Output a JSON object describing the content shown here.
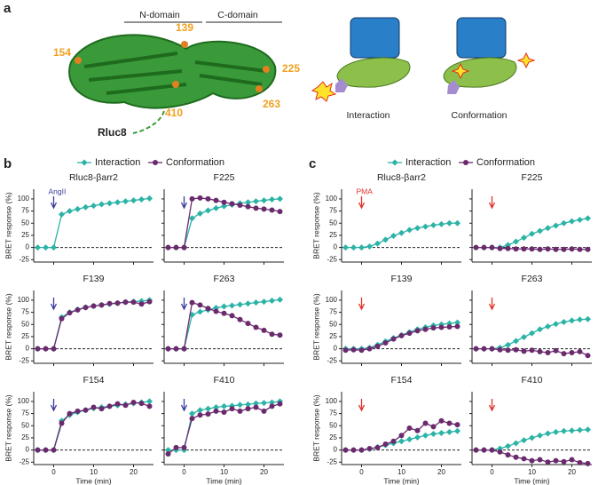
{
  "panel_labels": [
    "a",
    "b",
    "c"
  ],
  "diagram": {
    "n_domain": "N-domain",
    "c_domain": "C-domain",
    "sites": [
      "139",
      "154",
      "225",
      "263",
      "410"
    ],
    "rluc": "Rluc8",
    "captions": [
      "Interaction",
      "Conformation"
    ]
  },
  "chart_data": [
    {
      "type": "line",
      "title": "Rluc8-βarr2",
      "annotation": "AngII",
      "y_label": "BRET response (%)",
      "x": [
        -4,
        -2,
        0,
        2,
        4,
        6,
        8,
        10,
        12,
        14,
        16,
        18,
        20,
        22,
        24
      ],
      "xlim": [
        -5,
        25
      ],
      "ylim": [
        -30,
        120
      ],
      "xticks": [
        0,
        10,
        20
      ],
      "yticks": [
        -25,
        0,
        25,
        50,
        75,
        100
      ],
      "arrow_x": 0,
      "arrow_color": "#3b3b9e",
      "zero_line": true,
      "series": [
        {
          "name": "Interaction",
          "color": "#2ab3a6",
          "marker": "diamond",
          "values": [
            0,
            0,
            0,
            68,
            75,
            79,
            83,
            86,
            89,
            91,
            93,
            95,
            97,
            99,
            101
          ]
        },
        {
          "name": "Conformation",
          "color": "#6b2a6e",
          "marker": "circle",
          "values": [
            null,
            null,
            null,
            null,
            null,
            null,
            null,
            null,
            null,
            null,
            null,
            null,
            null,
            null,
            null
          ]
        }
      ]
    },
    {
      "type": "line",
      "title": "F225",
      "x": [
        -4,
        -2,
        0,
        2,
        4,
        6,
        8,
        10,
        12,
        14,
        16,
        18,
        20,
        22,
        24
      ],
      "xlim": [
        -5,
        25
      ],
      "ylim": [
        -30,
        120
      ],
      "xticks": [
        0,
        10,
        20
      ],
      "yticks": [
        -25,
        0,
        25,
        50,
        75,
        100
      ],
      "arrow_x": 0,
      "arrow_color": "#3b3b9e",
      "zero_line": true,
      "series": [
        {
          "color": "#2ab3a6",
          "marker": "diamond",
          "values": [
            0,
            0,
            0,
            60,
            70,
            76,
            81,
            85,
            88,
            91,
            93,
            95,
            97,
            99,
            100
          ]
        },
        {
          "color": "#6b2a6e",
          "marker": "circle",
          "values": [
            0,
            0,
            0,
            100,
            102,
            100,
            97,
            93,
            90,
            87,
            84,
            81,
            79,
            77,
            74
          ]
        }
      ]
    },
    {
      "type": "line",
      "title": "F139",
      "y_label": "BRET response (%)",
      "x": [
        -4,
        -2,
        0,
        2,
        4,
        6,
        8,
        10,
        12,
        14,
        16,
        18,
        20,
        22,
        24
      ],
      "xlim": [
        -5,
        25
      ],
      "ylim": [
        -30,
        120
      ],
      "xticks": [
        0,
        10,
        20
      ],
      "yticks": [
        -25,
        0,
        25,
        50,
        75,
        100
      ],
      "arrow_x": 0,
      "arrow_color": "#3b3b9e",
      "zero_line": true,
      "series": [
        {
          "color": "#2ab3a6",
          "marker": "diamond",
          "values": [
            0,
            0,
            0,
            65,
            75,
            81,
            85,
            88,
            90,
            92,
            94,
            96,
            97,
            98,
            100
          ]
        },
        {
          "color": "#6b2a6e",
          "marker": "circle",
          "values": [
            0,
            0,
            0,
            62,
            74,
            80,
            85,
            88,
            90,
            93,
            94,
            96,
            96,
            92,
            97
          ]
        }
      ]
    },
    {
      "type": "line",
      "title": "F263",
      "x": [
        -4,
        -2,
        0,
        2,
        4,
        6,
        8,
        10,
        12,
        14,
        16,
        18,
        20,
        22,
        24
      ],
      "xlim": [
        -5,
        25
      ],
      "ylim": [
        -30,
        120
      ],
      "xticks": [
        0,
        10,
        20
      ],
      "yticks": [
        -25,
        0,
        25,
        50,
        75,
        100
      ],
      "arrow_x": 0,
      "arrow_color": "#3b3b9e",
      "zero_line": true,
      "series": [
        {
          "color": "#2ab3a6",
          "marker": "diamond",
          "values": [
            0,
            0,
            0,
            70,
            76,
            80,
            84,
            87,
            89,
            91,
            93,
            95,
            97,
            99,
            101
          ]
        },
        {
          "color": "#6b2a6e",
          "marker": "circle",
          "values": [
            0,
            0,
            0,
            95,
            90,
            83,
            77,
            73,
            68,
            60,
            52,
            44,
            38,
            30,
            28
          ]
        }
      ]
    },
    {
      "type": "line",
      "title": "F154",
      "y_label": "BRET response (%)",
      "x_label": "Time (min)",
      "x": [
        -4,
        -2,
        0,
        2,
        4,
        6,
        8,
        10,
        12,
        14,
        16,
        18,
        20,
        22,
        24
      ],
      "xlim": [
        -5,
        25
      ],
      "ylim": [
        -30,
        120
      ],
      "xticks": [
        0,
        10,
        20
      ],
      "yticks": [
        -25,
        0,
        25,
        50,
        75,
        100
      ],
      "arrow_x": 0,
      "arrow_color": "#3b3b9e",
      "zero_line": true,
      "series": [
        {
          "color": "#2ab3a6",
          "marker": "diamond",
          "values": [
            0,
            0,
            0,
            60,
            72,
            78,
            82,
            86,
            88,
            90,
            92,
            94,
            96,
            98,
            100
          ]
        },
        {
          "color": "#6b2a6e",
          "marker": "circle",
          "values": [
            0,
            0,
            0,
            55,
            75,
            80,
            82,
            88,
            85,
            90,
            95,
            92,
            98,
            96,
            90
          ]
        }
      ]
    },
    {
      "type": "line",
      "title": "F410",
      "x_label": "Time (min)",
      "x": [
        -4,
        -2,
        0,
        2,
        4,
        6,
        8,
        10,
        12,
        14,
        16,
        18,
        20,
        22,
        24
      ],
      "xlim": [
        -5,
        25
      ],
      "ylim": [
        -30,
        120
      ],
      "xticks": [
        0,
        10,
        20
      ],
      "yticks": [
        -25,
        0,
        25,
        50,
        75,
        100
      ],
      "arrow_x": 0,
      "arrow_color": "#3b3b9e",
      "zero_line": true,
      "series": [
        {
          "color": "#2ab3a6",
          "marker": "diamond",
          "values": [
            0,
            0,
            0,
            75,
            82,
            85,
            88,
            90,
            91,
            93,
            94,
            96,
            97,
            98,
            100
          ]
        },
        {
          "color": "#6b2a6e",
          "marker": "circle",
          "values": [
            -8,
            5,
            5,
            65,
            72,
            74,
            80,
            78,
            85,
            80,
            85,
            88,
            80,
            90,
            95
          ]
        }
      ]
    },
    {
      "type": "line",
      "title": "Rluc8-βarr2",
      "annotation": "PMA",
      "y_label": "BRET response (%)",
      "x": [
        -4,
        -2,
        0,
        2,
        4,
        6,
        8,
        10,
        12,
        14,
        16,
        18,
        20,
        22,
        24
      ],
      "xlim": [
        -5,
        25
      ],
      "ylim": [
        -30,
        120
      ],
      "xticks": [
        0,
        10,
        20
      ],
      "yticks": [
        -25,
        0,
        25,
        50,
        75,
        100
      ],
      "arrow_x": 0,
      "arrow_color": "#e0302a",
      "zero_line": true,
      "series": [
        {
          "name": "Interaction",
          "color": "#2ab3a6",
          "marker": "diamond",
          "values": [
            0,
            0,
            0,
            2,
            8,
            16,
            24,
            30,
            36,
            40,
            43,
            46,
            48,
            50,
            50
          ]
        },
        {
          "name": "Conformation",
          "color": "#6b2a6e",
          "marker": "circle",
          "values": [
            null,
            null,
            null,
            null,
            null,
            null,
            null,
            null,
            null,
            null,
            null,
            null,
            null,
            null,
            null
          ]
        }
      ]
    },
    {
      "type": "line",
      "title": "F225",
      "x": [
        -4,
        -2,
        0,
        2,
        4,
        6,
        8,
        10,
        12,
        14,
        16,
        18,
        20,
        22,
        24
      ],
      "xlim": [
        -5,
        25
      ],
      "ylim": [
        -30,
        120
      ],
      "xticks": [
        0,
        10,
        20
      ],
      "yticks": [
        -25,
        0,
        25,
        50,
        75,
        100
      ],
      "arrow_x": 0,
      "arrow_color": "#e0302a",
      "zero_line": true,
      "series": [
        {
          "color": "#2ab3a6",
          "marker": "diamond",
          "values": [
            0,
            0,
            0,
            0,
            5,
            12,
            20,
            28,
            34,
            40,
            45,
            50,
            54,
            57,
            60
          ]
        },
        {
          "color": "#6b2a6e",
          "marker": "circle",
          "values": [
            0,
            0,
            0,
            -2,
            -2,
            -3,
            -3,
            -3,
            -4,
            -3,
            -4,
            -4,
            -3,
            -4,
            -4
          ]
        }
      ]
    },
    {
      "type": "line",
      "title": "F139",
      "y_label": "BRET response (%)",
      "x": [
        -4,
        -2,
        0,
        2,
        4,
        6,
        8,
        10,
        12,
        14,
        16,
        18,
        20,
        22,
        24
      ],
      "xlim": [
        -5,
        25
      ],
      "ylim": [
        -30,
        120
      ],
      "xticks": [
        0,
        10,
        20
      ],
      "yticks": [
        -25,
        0,
        25,
        50,
        75,
        100
      ],
      "arrow_x": 0,
      "arrow_color": "#e0302a",
      "zero_line": true,
      "series": [
        {
          "color": "#2ab3a6",
          "marker": "diamond",
          "values": [
            0,
            0,
            0,
            2,
            8,
            15,
            22,
            28,
            34,
            40,
            44,
            48,
            50,
            52,
            54
          ]
        },
        {
          "color": "#6b2a6e",
          "marker": "circle",
          "values": [
            -3,
            -2,
            -3,
            0,
            5,
            12,
            20,
            27,
            32,
            37,
            40,
            43,
            44,
            45,
            46
          ]
        }
      ]
    },
    {
      "type": "line",
      "title": "F263",
      "x": [
        -4,
        -2,
        0,
        2,
        4,
        6,
        8,
        10,
        12,
        14,
        16,
        18,
        20,
        22,
        24
      ],
      "xlim": [
        -5,
        25
      ],
      "ylim": [
        -30,
        120
      ],
      "xticks": [
        0,
        10,
        20
      ],
      "yticks": [
        -25,
        0,
        25,
        50,
        75,
        100
      ],
      "arrow_x": 0,
      "arrow_color": "#e0302a",
      "zero_line": true,
      "series": [
        {
          "color": "#2ab3a6",
          "marker": "diamond",
          "values": [
            0,
            0,
            0,
            2,
            8,
            16,
            24,
            32,
            40,
            46,
            51,
            55,
            58,
            60,
            61
          ]
        },
        {
          "color": "#6b2a6e",
          "marker": "circle",
          "values": [
            0,
            0,
            0,
            -2,
            -3,
            -2,
            -5,
            -3,
            -6,
            -8,
            -4,
            -10,
            -8,
            -6,
            -14
          ]
        }
      ]
    },
    {
      "type": "line",
      "title": "F154",
      "y_label": "BRET response (%)",
      "x_label": "Time (min)",
      "x": [
        -4,
        -2,
        0,
        2,
        4,
        6,
        8,
        10,
        12,
        14,
        16,
        18,
        20,
        22,
        24
      ],
      "xlim": [
        -5,
        25
      ],
      "ylim": [
        -30,
        120
      ],
      "xticks": [
        0,
        10,
        20
      ],
      "yticks": [
        -25,
        0,
        25,
        50,
        75,
        100
      ],
      "arrow_x": 0,
      "arrow_color": "#e0302a",
      "zero_line": true,
      "series": [
        {
          "color": "#2ab3a6",
          "marker": "diamond",
          "values": [
            0,
            0,
            0,
            2,
            6,
            10,
            14,
            18,
            22,
            26,
            30,
            33,
            35,
            37,
            39
          ]
        },
        {
          "color": "#6b2a6e",
          "marker": "circle",
          "values": [
            0,
            0,
            0,
            3,
            5,
            12,
            18,
            30,
            45,
            40,
            55,
            48,
            60,
            55,
            52
          ]
        }
      ]
    },
    {
      "type": "line",
      "title": "F410",
      "x_label": "Time (min)",
      "x": [
        -4,
        -2,
        0,
        2,
        4,
        6,
        8,
        10,
        12,
        14,
        16,
        18,
        20,
        22,
        24
      ],
      "xlim": [
        -5,
        25
      ],
      "ylim": [
        -30,
        120
      ],
      "xticks": [
        0,
        10,
        20
      ],
      "yticks": [
        -25,
        0,
        25,
        50,
        75,
        100
      ],
      "arrow_x": 0,
      "arrow_color": "#e0302a",
      "zero_line": true,
      "series": [
        {
          "color": "#2ab3a6",
          "marker": "diamond",
          "values": [
            0,
            0,
            0,
            3,
            8,
            14,
            20,
            25,
            30,
            34,
            37,
            39,
            40,
            41,
            42
          ]
        },
        {
          "color": "#6b2a6e",
          "marker": "circle",
          "values": [
            0,
            0,
            0,
            -4,
            -10,
            -15,
            -18,
            -22,
            -20,
            -25,
            -22,
            -24,
            -20,
            -26,
            -28
          ]
        }
      ]
    }
  ]
}
